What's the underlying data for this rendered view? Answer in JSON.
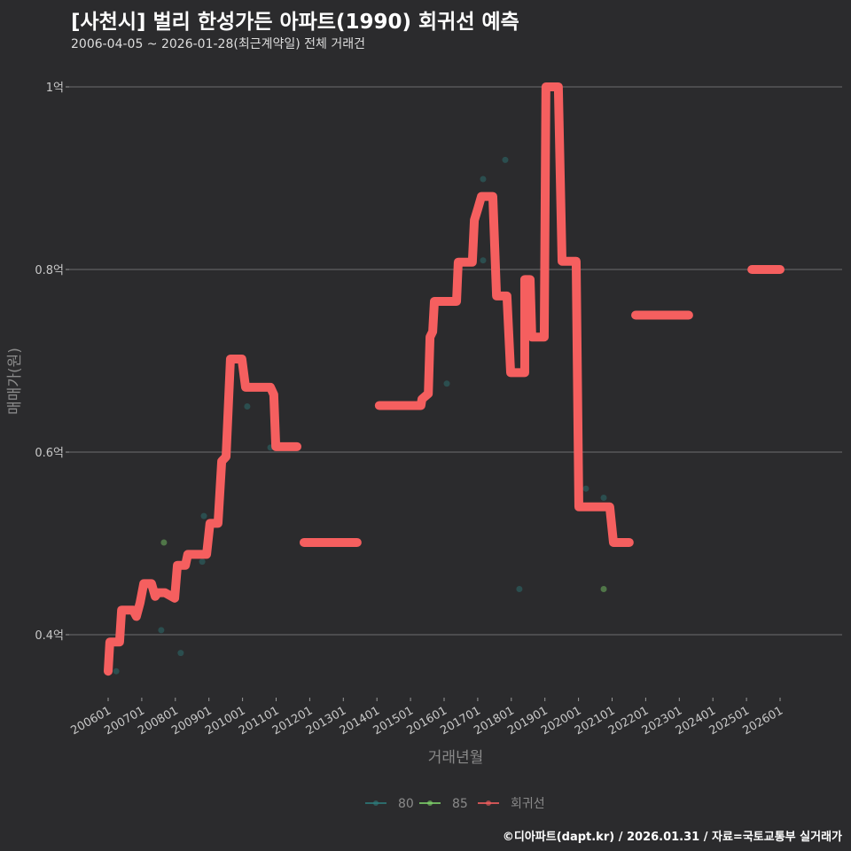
{
  "title": "[사천시] 벌리 한성가든 아파트(1990) 회귀선 예측",
  "subtitle": "2006-04-05 ~ 2026-01-28(최근계약일) 전체 거래건",
  "caption": "©디아파트(dapt.kr) / 2026.01.31 / 자료=국토교통부 실거래가",
  "chart_data": {
    "type": "line",
    "xlabel": "거래년월",
    "ylabel": "매매가(원)",
    "xlim": [
      2005.2,
      2028.2
    ],
    "ylim": [
      0.33,
      1.04
    ],
    "grid": true,
    "legend_position": "bottom",
    "x_ticks": [
      {
        "value": 2006,
        "label": "200601"
      },
      {
        "value": 2007,
        "label": "200701"
      },
      {
        "value": 2008,
        "label": "200801"
      },
      {
        "value": 2009,
        "label": "200901"
      },
      {
        "value": 2010,
        "label": "201001"
      },
      {
        "value": 2011,
        "label": "201101"
      },
      {
        "value": 2012,
        "label": "201201"
      },
      {
        "value": 2013,
        "label": "201301"
      },
      {
        "value": 2014,
        "label": "201401"
      },
      {
        "value": 2015,
        "label": "201501"
      },
      {
        "value": 2016,
        "label": "201601"
      },
      {
        "value": 2017,
        "label": "201701"
      },
      {
        "value": 2018,
        "label": "201801"
      },
      {
        "value": 2019,
        "label": "201901"
      },
      {
        "value": 2020,
        "label": "202001"
      },
      {
        "value": 2021,
        "label": "202101"
      },
      {
        "value": 2022,
        "label": "202201"
      },
      {
        "value": 2023,
        "label": "202301"
      },
      {
        "value": 2024,
        "label": "202401"
      },
      {
        "value": 2025,
        "label": "202501"
      },
      {
        "value": 2026,
        "label": "202601"
      }
    ],
    "y_ticks": [
      {
        "value": 0.4,
        "label": "0.4억"
      },
      {
        "value": 0.6,
        "label": "0.6억"
      },
      {
        "value": 0.8,
        "label": "0.8억"
      },
      {
        "value": 1.0,
        "label": "1억"
      }
    ],
    "legend": [
      {
        "name": "80",
        "color": "#2d7b7b"
      },
      {
        "name": "85",
        "color": "#7fd36b"
      },
      {
        "name": "회귀선",
        "color": "#f55f5f"
      }
    ],
    "series": [
      {
        "name": "80",
        "type": "scatter",
        "color": "#2d7b7b",
        "points": [
          [
            2006.24,
            0.36
          ],
          [
            2007.58,
            0.405
          ],
          [
            2008.16,
            0.38
          ],
          [
            2008.8,
            0.48
          ],
          [
            2008.85,
            0.53
          ],
          [
            2010.14,
            0.65
          ],
          [
            2010.83,
            0.605
          ],
          [
            2016.08,
            0.675
          ],
          [
            2017.16,
            0.899
          ],
          [
            2017.16,
            0.81
          ],
          [
            2017.82,
            0.92
          ],
          [
            2018.24,
            0.45
          ],
          [
            2020.22,
            0.56
          ],
          [
            2020.75,
            0.55
          ]
        ]
      },
      {
        "name": "85",
        "type": "scatter",
        "color": "#7fd36b",
        "points": [
          [
            2007.66,
            0.501
          ],
          [
            2020.75,
            0.45
          ]
        ]
      },
      {
        "name": "회귀선",
        "type": "line",
        "color": "#f55f5f",
        "segments": [
          [
            [
              2006.0,
              0.36
            ],
            [
              2006.05,
              0.392
            ],
            [
              2006.34,
              0.392
            ],
            [
              2006.4,
              0.427
            ],
            [
              2006.74,
              0.427
            ],
            [
              2006.84,
              0.42
            ],
            [
              2006.95,
              0.435
            ],
            [
              2007.06,
              0.456
            ],
            [
              2007.29,
              0.456
            ],
            [
              2007.4,
              0.442
            ],
            [
              2007.48,
              0.446
            ],
            [
              2007.69,
              0.446
            ],
            [
              2007.98,
              0.44
            ],
            [
              2008.06,
              0.476
            ],
            [
              2008.3,
              0.476
            ],
            [
              2008.37,
              0.488
            ],
            [
              2008.93,
              0.488
            ],
            [
              2009.03,
              0.522
            ],
            [
              2009.27,
              0.522
            ],
            [
              2009.38,
              0.59
            ],
            [
              2009.51,
              0.595
            ],
            [
              2009.64,
              0.702
            ],
            [
              2009.98,
              0.702
            ],
            [
              2010.09,
              0.671
            ],
            [
              2010.83,
              0.671
            ],
            [
              2010.93,
              0.663
            ],
            [
              2010.99,
              0.606
            ],
            [
              2011.62,
              0.606
            ]
          ],
          [
            [
              2011.83,
              0.501
            ],
            [
              2013.41,
              0.501
            ]
          ],
          [
            [
              2014.07,
              0.651
            ],
            [
              2015.31,
              0.651
            ],
            [
              2015.34,
              0.658
            ],
            [
              2015.53,
              0.664
            ],
            [
              2015.58,
              0.726
            ],
            [
              2015.66,
              0.732
            ],
            [
              2015.71,
              0.765
            ],
            [
              2016.37,
              0.765
            ],
            [
              2016.42,
              0.808
            ],
            [
              2016.84,
              0.808
            ],
            [
              2016.9,
              0.854
            ],
            [
              2017.0,
              0.866
            ],
            [
              2017.11,
              0.88
            ],
            [
              2017.45,
              0.88
            ],
            [
              2017.56,
              0.771
            ],
            [
              2017.87,
              0.771
            ],
            [
              2017.98,
              0.687
            ],
            [
              2018.4,
              0.687
            ],
            [
              2018.4,
              0.789
            ],
            [
              2018.56,
              0.789
            ],
            [
              2018.61,
              0.726
            ],
            [
              2018.98,
              0.726
            ],
            [
              2019.03,
              1.0
            ],
            [
              2019.4,
              1.0
            ],
            [
              2019.51,
              0.809
            ],
            [
              2019.93,
              0.809
            ],
            [
              2020.01,
              0.54
            ],
            [
              2020.93,
              0.54
            ],
            [
              2021.04,
              0.501
            ],
            [
              2021.51,
              0.501
            ]
          ],
          [
            [
              2021.7,
              0.75
            ],
            [
              2023.28,
              0.75
            ]
          ],
          [
            [
              2025.16,
              0.8
            ],
            [
              2026.0,
              0.8
            ]
          ]
        ]
      }
    ]
  }
}
